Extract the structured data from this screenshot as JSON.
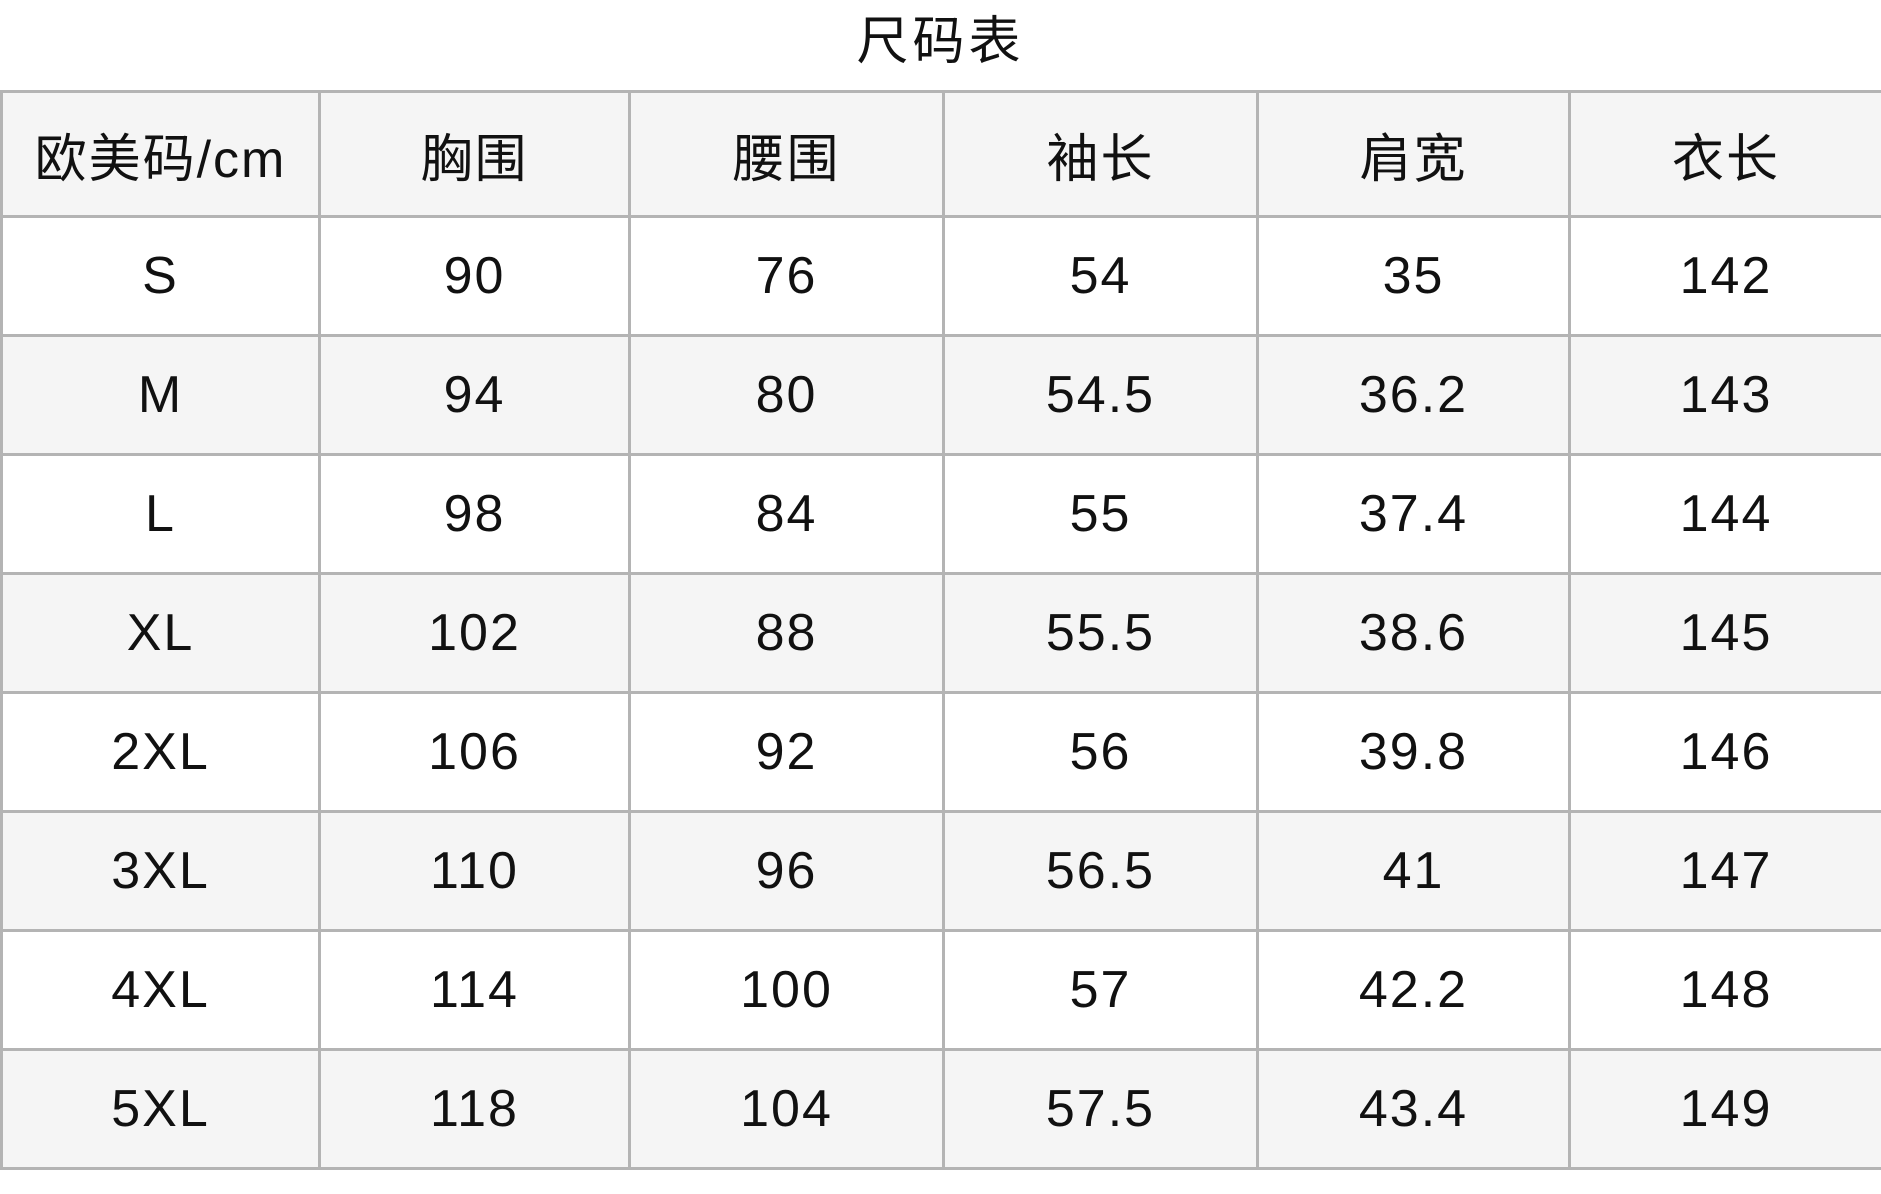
{
  "title": "尺码表",
  "headers": [
    "欧美码/cm",
    "胸围",
    "腰围",
    "袖长",
    "肩宽",
    "衣长"
  ],
  "rows": [
    [
      "S",
      "90",
      "76",
      "54",
      "35",
      "142"
    ],
    [
      "M",
      "94",
      "80",
      "54.5",
      "36.2",
      "143"
    ],
    [
      "L",
      "98",
      "84",
      "55",
      "37.4",
      "144"
    ],
    [
      "XL",
      "102",
      "88",
      "55.5",
      "38.6",
      "145"
    ],
    [
      "2XL",
      "106",
      "92",
      "56",
      "39.8",
      "146"
    ],
    [
      "3XL",
      "110",
      "96",
      "56.5",
      "41",
      "147"
    ],
    [
      "4XL",
      "114",
      "100",
      "57",
      "42.2",
      "148"
    ],
    [
      "5XL",
      "118",
      "104",
      "57.5",
      "43.4",
      "149"
    ]
  ]
}
